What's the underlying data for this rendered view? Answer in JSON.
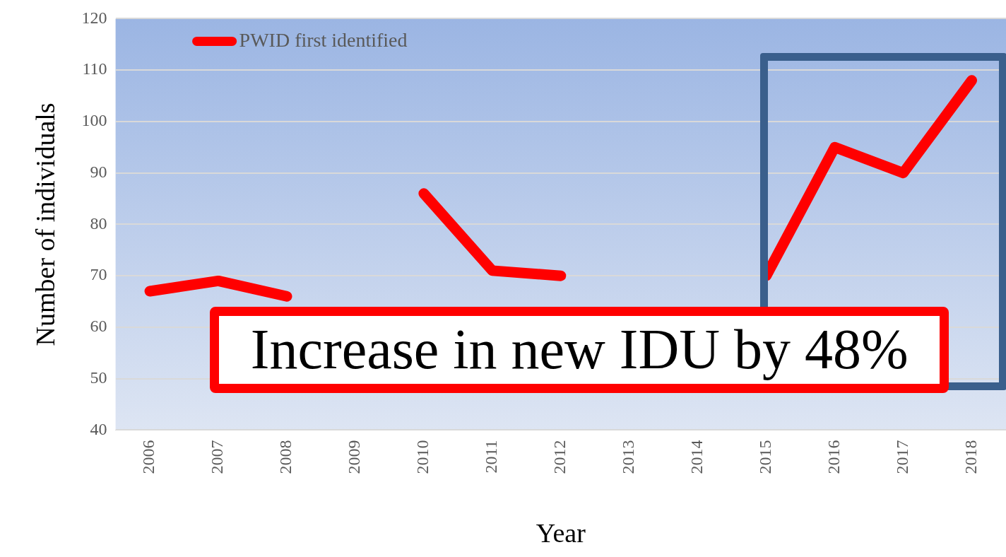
{
  "chart_data": {
    "type": "line",
    "xlabel": "Year",
    "ylabel": "Number of individuals",
    "categories": [
      "2006",
      "2007",
      "2008",
      "2009",
      "2010",
      "2011",
      "2012",
      "2013",
      "2014",
      "2015",
      "2016",
      "2017",
      "2018"
    ],
    "series": [
      {
        "name": "PWID first identified",
        "color": "#ff0000",
        "values": [
          67,
          69,
          66,
          null,
          86,
          71,
          70,
          null,
          null,
          70,
          95,
          90,
          108
        ]
      }
    ],
    "ylim": [
      40,
      120
    ],
    "yticks": [
      40,
      50,
      60,
      70,
      80,
      90,
      100,
      110,
      120
    ],
    "grid": "y",
    "legend": "top left",
    "marker": "none",
    "line_style": "solid",
    "annotations": [
      "Increase in new IDU by 48%"
    ]
  }
}
